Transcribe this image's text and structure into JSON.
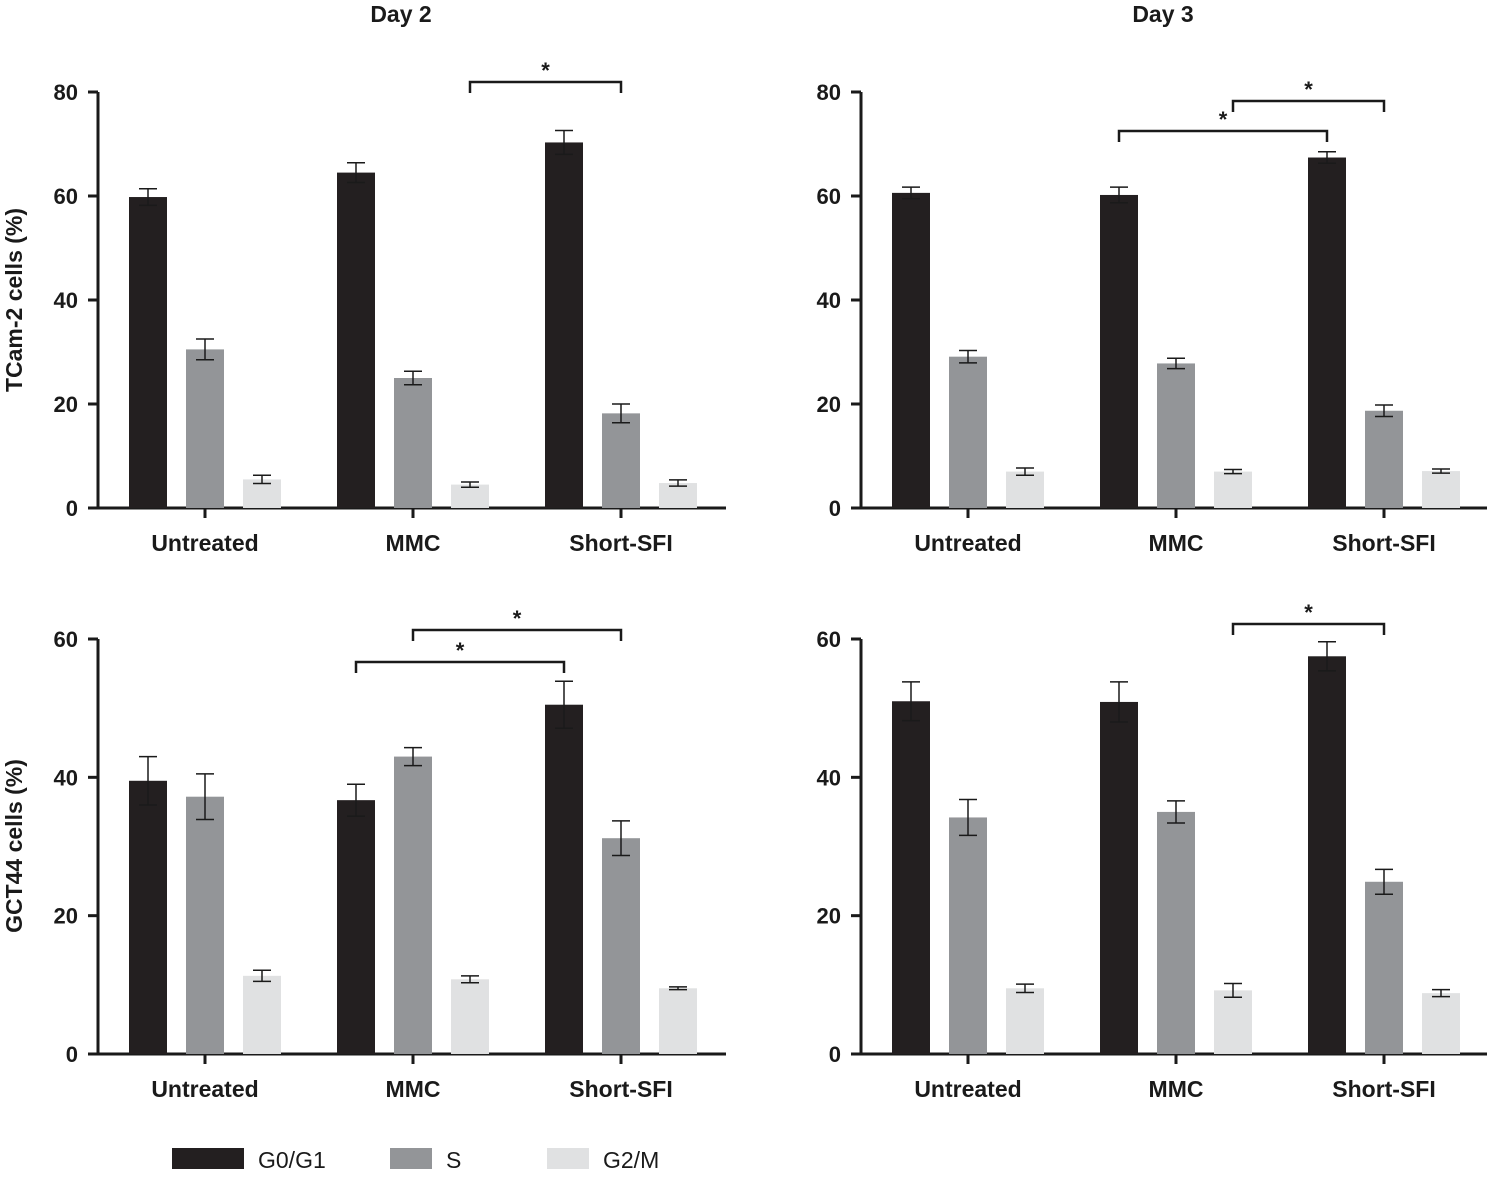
{
  "column_titles": [
    "Day 2",
    "Day 3"
  ],
  "row_ylabels": [
    "TCam-2 cells (%)",
    "GCT44 cells (%)"
  ],
  "legend": [
    {
      "name": "G0/G1",
      "color": "#231f20"
    },
    {
      "name": "S",
      "color": "#939598"
    },
    {
      "name": "G2/M",
      "color": "#e0e1e2"
    }
  ],
  "chart_data": [
    {
      "type": "bar",
      "title": "Day 2",
      "ylabel": "TCam-2 cells (%)",
      "categories": [
        "Untreated",
        "MMC",
        "Short-SFI"
      ],
      "ylim": [
        0,
        80
      ],
      "yticks": [
        "0",
        "20",
        "40",
        "60",
        "80"
      ],
      "series": [
        {
          "name": "G0/G1",
          "values": [
            59.8,
            64.5,
            70.3
          ],
          "errors": [
            1.6,
            1.9,
            2.3
          ]
        },
        {
          "name": "S",
          "values": [
            30.5,
            25.0,
            18.2
          ],
          "errors": [
            2.0,
            1.3,
            1.8
          ]
        },
        {
          "name": "G2/M",
          "values": [
            5.5,
            4.5,
            4.8
          ],
          "errors": [
            0.8,
            0.5,
            0.6
          ]
        }
      ],
      "significance": [
        {
          "from_category": "MMC",
          "from_series": "G2/M",
          "to_category": "Short-SFI",
          "to_series": "S",
          "label": "*"
        }
      ]
    },
    {
      "type": "bar",
      "title": "Day 3",
      "ylabel": "TCam-2 cells (%)",
      "categories": [
        "Untreated",
        "MMC",
        "Short-SFI"
      ],
      "ylim": [
        0,
        80
      ],
      "yticks": [
        "0",
        "20",
        "40",
        "60",
        "80"
      ],
      "series": [
        {
          "name": "G0/G1",
          "values": [
            60.6,
            60.2,
            67.4
          ],
          "errors": [
            1.1,
            1.5,
            1.1
          ]
        },
        {
          "name": "S",
          "values": [
            29.1,
            27.8,
            18.7
          ],
          "errors": [
            1.2,
            1.0,
            1.1
          ]
        },
        {
          "name": "G2/M",
          "values": [
            7.0,
            7.0,
            7.1
          ],
          "errors": [
            0.7,
            0.4,
            0.4
          ]
        }
      ],
      "significance": [
        {
          "from_category": "MMC",
          "from_series": "G2/M",
          "to_category": "Short-SFI",
          "to_series": "S",
          "label": "*"
        },
        {
          "from_category": "MMC",
          "from_series": "G0/G1",
          "to_category": "Short-SFI",
          "to_series": "G0/G1",
          "label": "*"
        }
      ]
    },
    {
      "type": "bar",
      "title": "Day 2",
      "ylabel": "GCT44 cells (%)",
      "categories": [
        "Untreated",
        "MMC",
        "Short-SFI"
      ],
      "ylim": [
        0,
        60
      ],
      "yticks": [
        "0",
        "20",
        "40",
        "60"
      ],
      "series": [
        {
          "name": "G0/G1",
          "values": [
            39.5,
            36.7,
            50.5
          ],
          "errors": [
            3.5,
            2.3,
            3.4
          ]
        },
        {
          "name": "S",
          "values": [
            37.2,
            43.0,
            31.2
          ],
          "errors": [
            3.3,
            1.3,
            2.5
          ]
        },
        {
          "name": "G2/M",
          "values": [
            11.3,
            10.8,
            9.5
          ],
          "errors": [
            0.8,
            0.5,
            0.2
          ]
        }
      ],
      "significance": [
        {
          "from_category": "MMC",
          "from_series": "S",
          "to_category": "Short-SFI",
          "to_series": "S",
          "label": "*"
        },
        {
          "from_category": "MMC",
          "from_series": "G0/G1",
          "to_category": "Short-SFI",
          "to_series": "G0/G1",
          "label": "*"
        }
      ]
    },
    {
      "type": "bar",
      "title": "Day 3",
      "ylabel": "GCT44 cells (%)",
      "categories": [
        "Untreated",
        "MMC",
        "Short-SFI"
      ],
      "ylim": [
        0,
        60
      ],
      "yticks": [
        "0",
        "20",
        "40",
        "60"
      ],
      "series": [
        {
          "name": "G0/G1",
          "values": [
            51.0,
            50.9,
            57.5
          ],
          "errors": [
            2.8,
            2.9,
            2.1
          ]
        },
        {
          "name": "S",
          "values": [
            34.2,
            35.0,
            24.9
          ],
          "errors": [
            2.6,
            1.6,
            1.8
          ]
        },
        {
          "name": "G2/M",
          "values": [
            9.5,
            9.2,
            8.8
          ],
          "errors": [
            0.6,
            1.0,
            0.5
          ]
        }
      ],
      "significance": [
        {
          "from_category": "MMC",
          "from_series": "G2/M",
          "to_category": "Short-SFI",
          "to_series": "S",
          "label": "*"
        }
      ]
    }
  ]
}
